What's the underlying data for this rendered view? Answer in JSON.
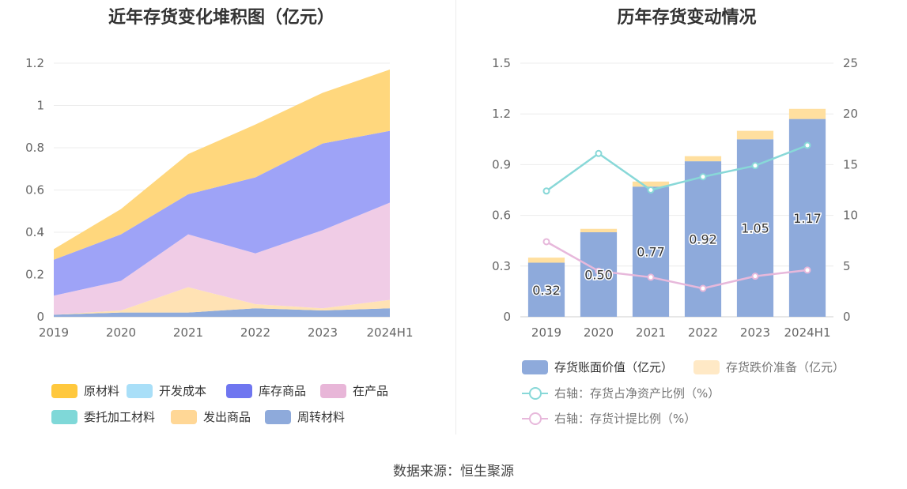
{
  "source": "数据来源：恒生聚源",
  "chart_data": [
    {
      "type": "area",
      "stacked": true,
      "title": "近年存货变化堆积图（亿元）",
      "categories": [
        "2019",
        "2020",
        "2021",
        "2022",
        "2023",
        "2024H1"
      ],
      "ylim": [
        0,
        1.2
      ],
      "yticks": [
        "0",
        "0.2",
        "0.4",
        "0.6",
        "0.8",
        "1",
        "1.2"
      ],
      "grid": true,
      "legend_position": "bottom",
      "series": [
        {
          "name": "周转材料",
          "color": "#8eaadb",
          "values": [
            0.01,
            0.02,
            0.02,
            0.04,
            0.03,
            0.04
          ]
        },
        {
          "name": "发出商品",
          "color": "#ffe2b4",
          "values": [
            0.0,
            0.01,
            0.12,
            0.02,
            0.01,
            0.04
          ]
        },
        {
          "name": "委托加工材料",
          "color": "#7fd8d8",
          "values": [
            0,
            0,
            0,
            0,
            0,
            0
          ]
        },
        {
          "name": "在产品",
          "color": "#f0cce6",
          "values": [
            0.09,
            0.14,
            0.25,
            0.24,
            0.37,
            0.46
          ]
        },
        {
          "name": "库存商品",
          "color": "#9ea3f7",
          "values": [
            0.17,
            0.22,
            0.19,
            0.36,
            0.41,
            0.34
          ]
        },
        {
          "name": "开发成本",
          "color": "#a9dff8",
          "values": [
            0,
            0,
            0,
            0,
            0,
            0
          ]
        },
        {
          "name": "原材料",
          "color": "#ffd77d",
          "values": [
            0.05,
            0.12,
            0.19,
            0.25,
            0.24,
            0.29
          ]
        }
      ],
      "legend_order": [
        "原材料",
        "开发成本",
        "库存商品",
        "在产品",
        "委托加工材料",
        "发出商品",
        "周转材料"
      ],
      "legend_colors": [
        "#ffc83d",
        "#a9dff8",
        "#6f76f0",
        "#e8b6d8",
        "#7fd8d8",
        "#ffd796",
        "#8eaadb"
      ]
    },
    {
      "type": "bar",
      "stacked": true,
      "title": "历年存货变动情况",
      "categories": [
        "2019",
        "2020",
        "2021",
        "2022",
        "2023",
        "2024H1"
      ],
      "ylim": [
        0,
        1.5
      ],
      "yticks": [
        "0",
        "0.3",
        "0.6",
        "0.9",
        "1.2",
        "1.5"
      ],
      "y2lim": [
        0,
        25
      ],
      "y2ticks": [
        "0",
        "5",
        "10",
        "15",
        "20",
        "25"
      ],
      "grid": true,
      "legend_position": "bottom",
      "series": [
        {
          "name": "存货账面价值（亿元）",
          "type": "bar",
          "axis": "left",
          "color": "#8eaadb",
          "values": [
            0.32,
            0.5,
            0.77,
            0.92,
            1.05,
            1.17
          ],
          "labels": [
            "0.32",
            "0.50",
            "0.77",
            "0.92",
            "1.05",
            "1.17"
          ]
        },
        {
          "name": "存货跌价准备（亿元）",
          "type": "bar",
          "axis": "left",
          "color": "#ffdf9f",
          "legend_color": "#ffe9c6",
          "values": [
            0.03,
            0.02,
            0.03,
            0.03,
            0.05,
            0.06
          ]
        },
        {
          "name": "右轴：存货占净资产比例（%）",
          "type": "line",
          "axis": "right",
          "color": "#88d8d8",
          "values": [
            12.4,
            16.1,
            12.5,
            13.8,
            14.9,
            16.9
          ]
        },
        {
          "name": "右轴：存货计提比例（%）",
          "type": "line",
          "axis": "right",
          "color": "#e7b8db",
          "values": [
            7.4,
            4.5,
            3.9,
            2.8,
            4.0,
            4.6
          ]
        }
      ]
    }
  ]
}
